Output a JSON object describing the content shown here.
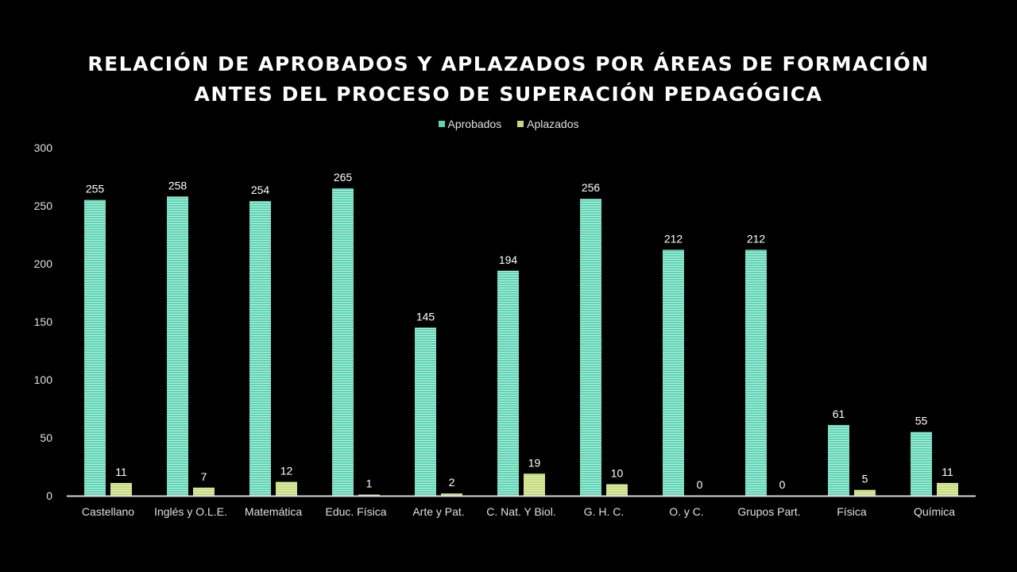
{
  "chart_data": {
    "type": "bar",
    "title_lines": [
      "RELACIÓN DE APROBADOS Y APLAZADOS POR ÁREAS DE FORMACIÓN",
      "ANTES DEL PROCESO DE SUPERACIÓN PEDAGÓGICA"
    ],
    "categories": [
      "Castellano",
      "Inglés y O.L.E.",
      "Matemática",
      "Educ. Física",
      "Arte y Pat.",
      "C. Nat. Y Biol.",
      "G. H. C.",
      "O. y C.",
      "Grupos Part.",
      "Física",
      "Química"
    ],
    "series": [
      {
        "name": "Aprobados",
        "color": "#5fd3b4",
        "values": [
          255,
          258,
          254,
          265,
          145,
          194,
          256,
          212,
          212,
          61,
          55
        ]
      },
      {
        "name": "Aplazados",
        "color": "#c3d97f",
        "values": [
          11,
          7,
          12,
          1,
          2,
          19,
          10,
          0,
          0,
          5,
          11
        ]
      }
    ],
    "ylim": [
      0,
      300
    ],
    "yticks": [
      0,
      50,
      100,
      150,
      200,
      250,
      300
    ],
    "grid": false,
    "legend_position": "top-center",
    "xlabel": "",
    "ylabel": ""
  }
}
